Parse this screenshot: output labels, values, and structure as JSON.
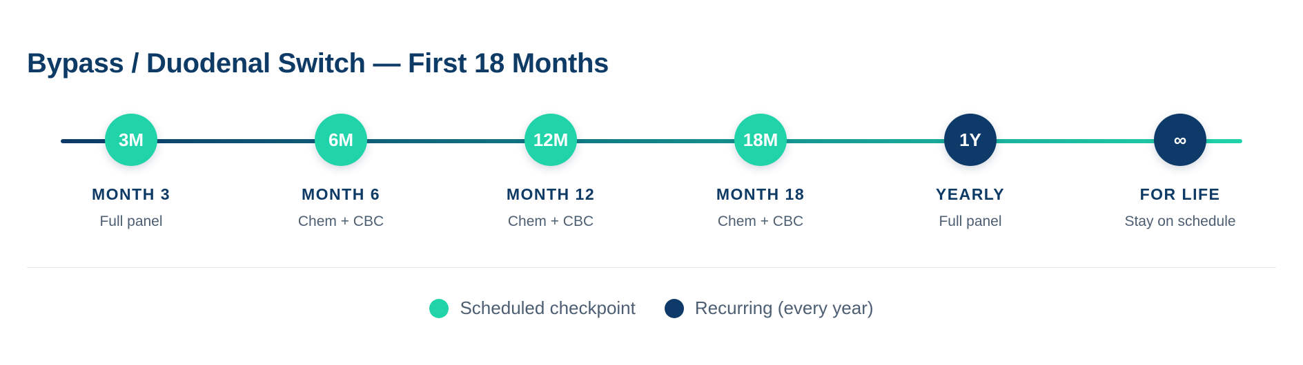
{
  "title": "Bypass / Duodenal Switch — First 18 Months",
  "milestones": [
    {
      "badge": "3M",
      "label": "MONTH 3",
      "desc": "Full panel",
      "kind": "scheduled"
    },
    {
      "badge": "6M",
      "label": "MONTH 6",
      "desc": "Chem + CBC",
      "kind": "scheduled"
    },
    {
      "badge": "12M",
      "label": "MONTH 12",
      "desc": "Chem + CBC",
      "kind": "scheduled"
    },
    {
      "badge": "18M",
      "label": "MONTH 18",
      "desc": "Chem + CBC",
      "kind": "scheduled"
    },
    {
      "badge": "1Y",
      "label": "YEARLY",
      "desc": "Full panel",
      "kind": "recurring"
    },
    {
      "badge": "∞",
      "label": "FOR LIFE",
      "desc": "Stay on schedule",
      "kind": "recurring"
    }
  ],
  "legend": [
    {
      "label": "Scheduled checkpoint",
      "color": "#21d3a9"
    },
    {
      "label": "Recurring (every year)",
      "color": "#0d3a68"
    }
  ],
  "colors": {
    "scheduled": "#21d3a9",
    "recurring": "#0d3a68",
    "title": "#0e3a66"
  }
}
